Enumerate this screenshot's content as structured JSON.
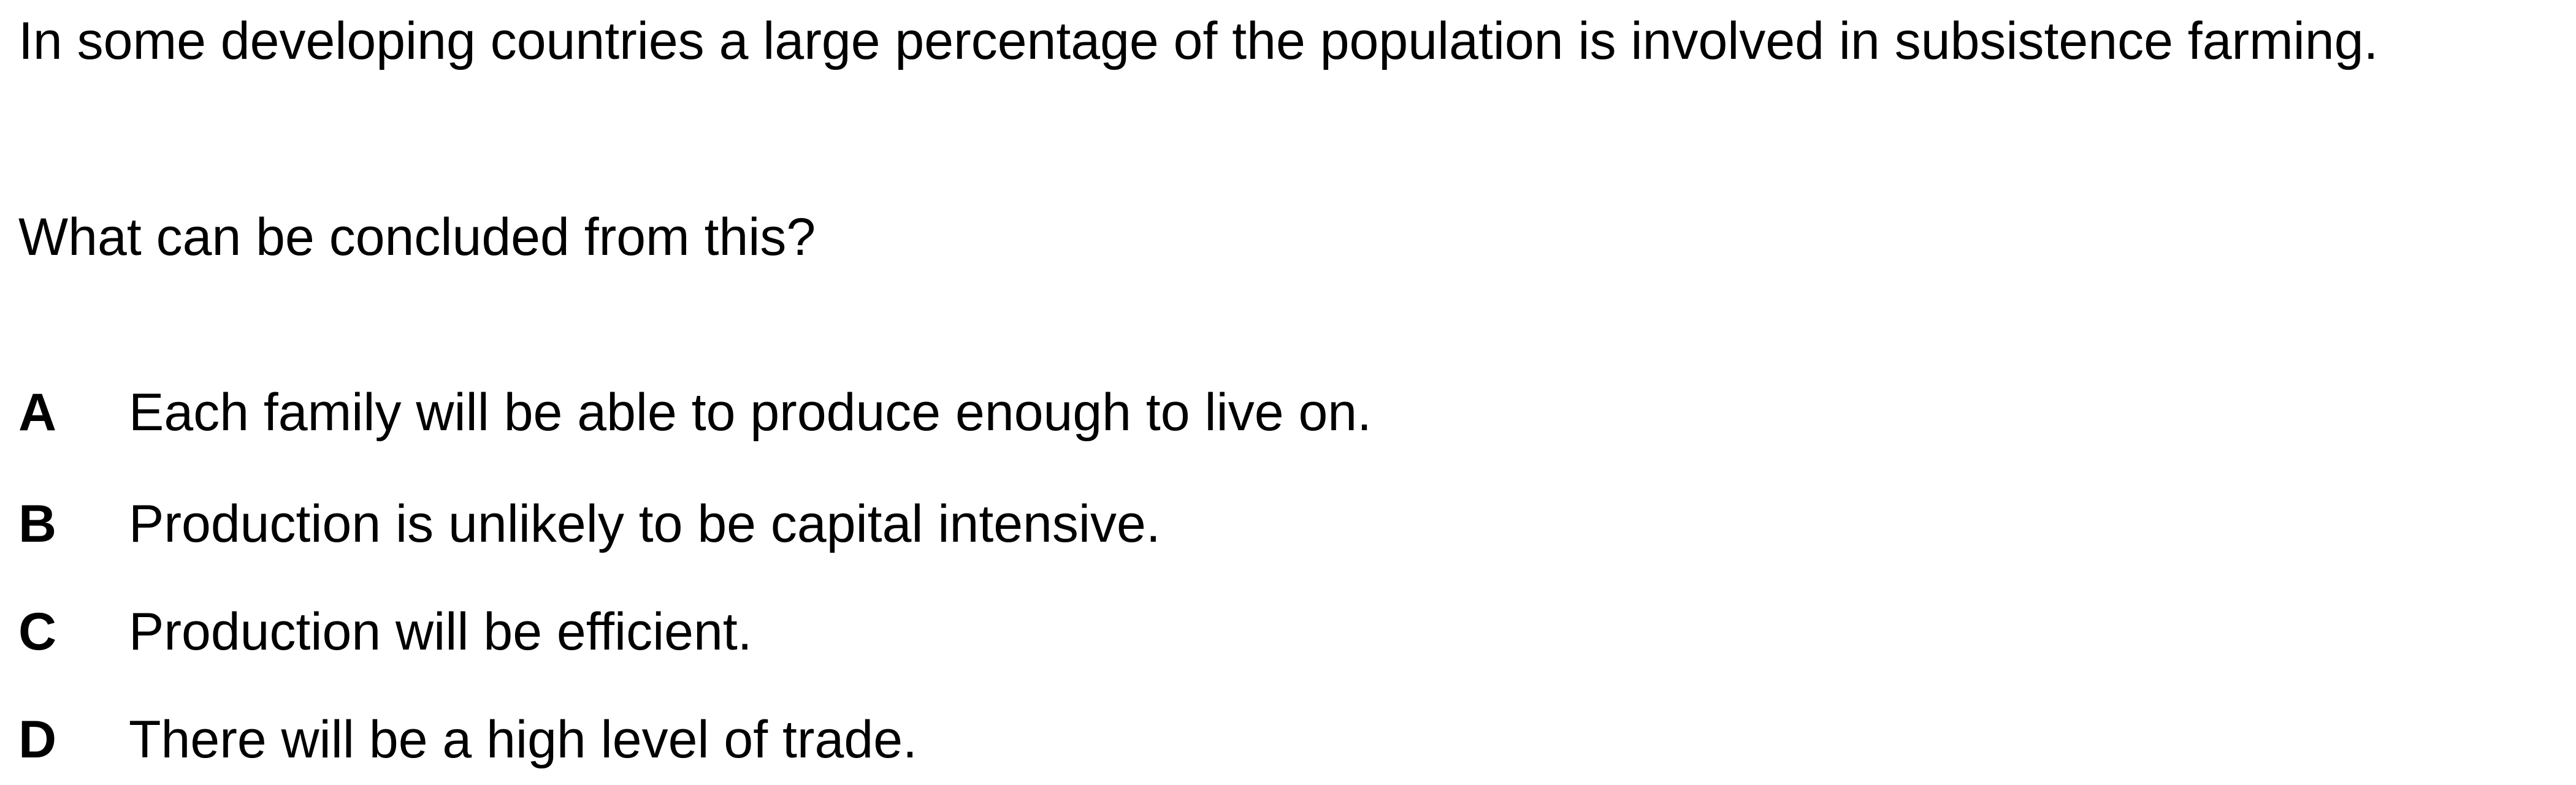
{
  "question": {
    "stem": "In some developing countries a large percentage of the population is involved in subsistence farming.",
    "prompt": "What can be concluded from this?"
  },
  "options": [
    {
      "letter": "A",
      "text": "Each family will be able to produce enough to live on."
    },
    {
      "letter": "B",
      "text": "Production is unlikely to be capital intensive."
    },
    {
      "letter": "C",
      "text": "Production will be efficient."
    },
    {
      "letter": "D",
      "text": "There will be a high level of trade."
    }
  ]
}
